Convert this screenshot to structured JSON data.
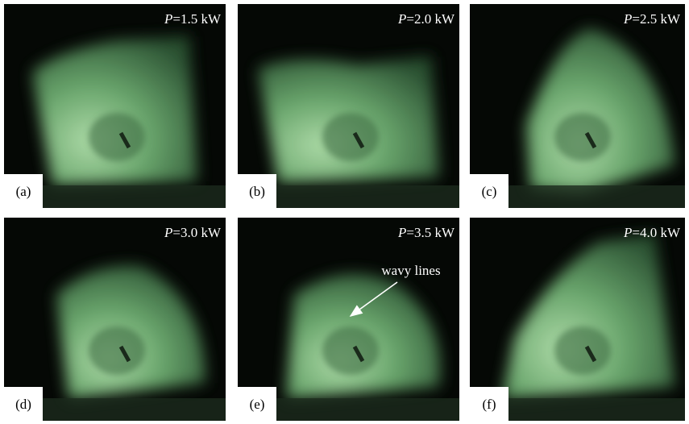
{
  "panels": [
    {
      "label": "(a)",
      "power": {
        "symbol": "P",
        "text": "=1.5 kW"
      }
    },
    {
      "label": "(b)",
      "power": {
        "symbol": "P",
        "text": "=2.0 kW"
      }
    },
    {
      "label": "(c)",
      "power": {
        "symbol": "P",
        "text": "=2.5 kW"
      }
    },
    {
      "label": "(d)",
      "power": {
        "symbol": "P",
        "text": "=3.0 kW"
      }
    },
    {
      "label": "(e)",
      "power": {
        "symbol": "P",
        "text": "=3.5 kW"
      }
    },
    {
      "label": "(f)",
      "power": {
        "symbol": "P",
        "text": "=4.0 kW"
      }
    }
  ],
  "annotation": {
    "text": "wavy lines"
  }
}
